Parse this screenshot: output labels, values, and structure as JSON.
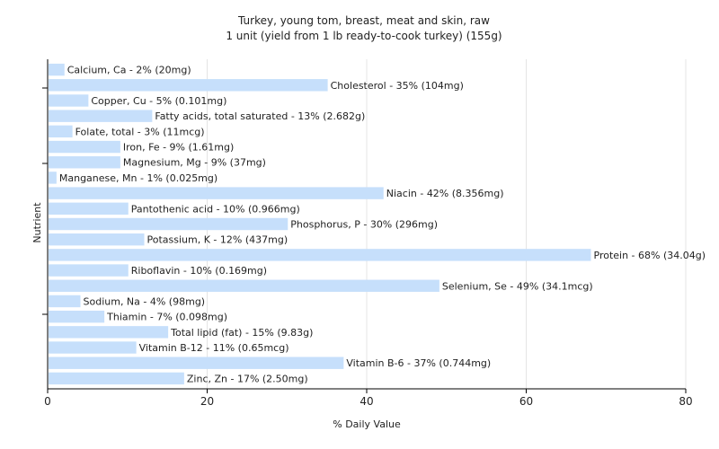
{
  "chart_data": {
    "type": "bar",
    "orientation": "horizontal",
    "title": "Turkey, young tom, breast, meat and skin, raw",
    "subtitle": "1 unit (yield from 1 lb ready-to-cook turkey) (155g)",
    "xlabel": "% Daily Value",
    "ylabel": "Nutrient",
    "xlim": [
      0,
      80
    ],
    "xticks": [
      "0",
      "20",
      "40",
      "60",
      "80"
    ],
    "grid": true,
    "bar_color": "#c6dffb",
    "grid_color": "#e4e4e4",
    "categories": [
      "Calcium, Ca",
      "Cholesterol",
      "Copper, Cu",
      "Fatty acids, total saturated",
      "Folate, total",
      "Iron, Fe",
      "Magnesium, Mg",
      "Manganese, Mn",
      "Niacin",
      "Pantothenic acid",
      "Phosphorus, P",
      "Potassium, K",
      "Protein",
      "Riboflavin",
      "Selenium, Se",
      "Sodium, Na",
      "Thiamin",
      "Total lipid (fat)",
      "Vitamin B-12",
      "Vitamin B-6",
      "Zinc, Zn"
    ],
    "values": [
      2,
      35,
      5,
      13,
      3,
      9,
      9,
      1,
      42,
      10,
      30,
      12,
      68,
      10,
      49,
      4,
      7,
      15,
      11,
      37,
      17
    ],
    "labels": [
      "Calcium, Ca - 2% (20mg)",
      "Cholesterol - 35% (104mg)",
      "Copper, Cu - 5% (0.101mg)",
      "Fatty acids, total saturated - 13% (2.682g)",
      "Folate, total - 3% (11mcg)",
      "Iron, Fe - 9% (1.61mg)",
      "Magnesium, Mg - 9% (37mg)",
      "Manganese, Mn - 1% (0.025mg)",
      "Niacin - 42% (8.356mg)",
      "Pantothenic acid - 10% (0.966mg)",
      "Phosphorus, P - 30% (296mg)",
      "Potassium, K - 12% (437mg)",
      "Protein - 68% (34.04g)",
      "Riboflavin - 10% (0.169mg)",
      "Selenium, Se - 49% (34.1mcg)",
      "Sodium, Na - 4% (98mg)",
      "Thiamin - 7% (0.098mg)",
      "Total lipid (fat) - 15% (9.83g)",
      "Vitamin B-12 - 11% (0.65mcg)",
      "Vitamin B-6 - 37% (0.744mg)",
      "Zinc, Zn - 17% (2.50mg)"
    ]
  }
}
